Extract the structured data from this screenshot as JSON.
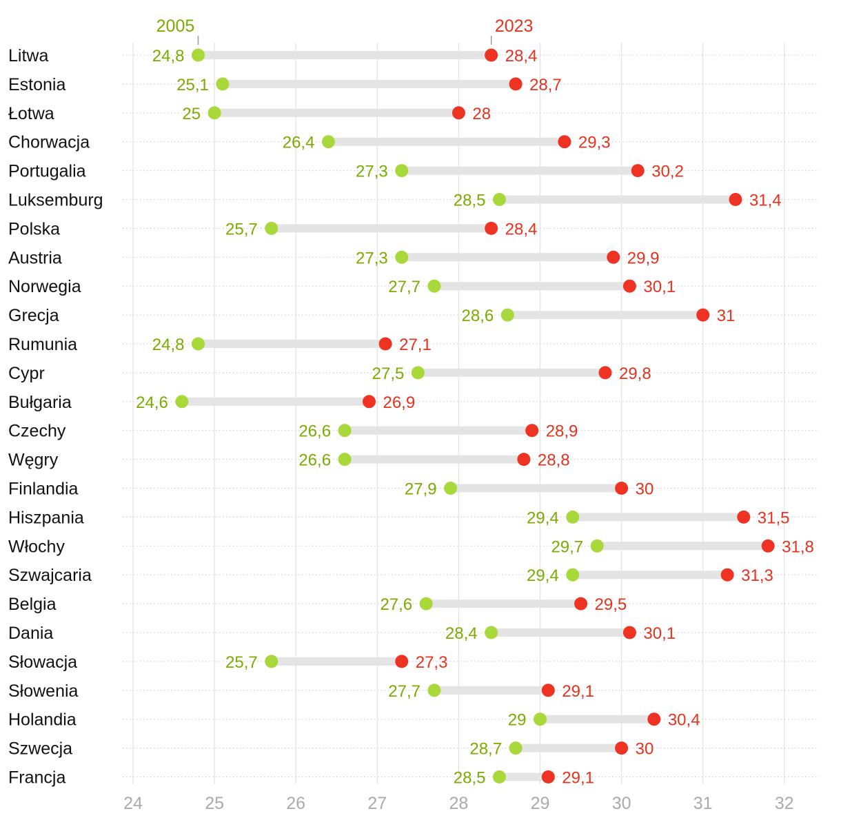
{
  "chart_data": {
    "type": "dumbbell",
    "title": "",
    "xlabel": "",
    "ylabel": "",
    "xlim": [
      24,
      32
    ],
    "x_ticks": [
      24,
      25,
      26,
      27,
      28,
      29,
      30,
      31,
      32
    ],
    "grid": true,
    "series": [
      {
        "name": "2005",
        "color": "#a8d83a",
        "label_color": "#7bab00"
      },
      {
        "name": "2023",
        "color": "#ee3322",
        "label_color": "#e8321e"
      }
    ],
    "categories": [
      "Litwa",
      "Estonia",
      "Łotwa",
      "Chorwacja",
      "Portugalia",
      "Luksemburg",
      "Polska",
      "Austria",
      "Norwegia",
      "Grecja",
      "Rumunia",
      "Cypr",
      "Bułgaria",
      "Czechy",
      "Węgry",
      "Finlandia",
      "Hiszpania",
      "Włochy",
      "Szwajcaria",
      "Belgia",
      "Dania",
      "Słowacja",
      "Słowenia",
      "Holandia",
      "Szwecja",
      "Francja"
    ],
    "values_start": [
      24.8,
      25.1,
      25.0,
      26.4,
      27.3,
      28.5,
      25.7,
      27.3,
      27.7,
      28.6,
      24.8,
      27.5,
      24.6,
      26.6,
      26.6,
      27.9,
      29.4,
      29.7,
      29.4,
      27.6,
      28.4,
      25.7,
      27.7,
      29.0,
      28.7,
      28.5
    ],
    "values_end": [
      28.4,
      28.7,
      28.0,
      29.3,
      30.2,
      31.4,
      28.4,
      29.9,
      30.1,
      31.0,
      27.1,
      29.8,
      26.9,
      28.9,
      28.8,
      30.0,
      31.5,
      31.8,
      31.3,
      29.5,
      30.1,
      27.3,
      29.1,
      30.4,
      30.0,
      29.1
    ],
    "labels_start": [
      "24,8",
      "25,1",
      "25",
      "26,4",
      "27,3",
      "28,5",
      "25,7",
      "27,3",
      "27,7",
      "28,6",
      "24,8",
      "27,5",
      "24,6",
      "26,6",
      "26,6",
      "27,9",
      "29,4",
      "29,7",
      "29,4",
      "27,6",
      "28,4",
      "25,7",
      "27,7",
      "29",
      "28,7",
      "28,5"
    ],
    "labels_end": [
      "28,4",
      "28,7",
      "28",
      "29,3",
      "30,2",
      "31,4",
      "28,4",
      "29,9",
      "30,1",
      "31",
      "27,1",
      "29,8",
      "26,9",
      "28,9",
      "28,8",
      "30",
      "31,5",
      "31,8",
      "31,3",
      "29,5",
      "30,1",
      "27,3",
      "29,1",
      "30,4",
      "30",
      "29,1"
    ]
  }
}
